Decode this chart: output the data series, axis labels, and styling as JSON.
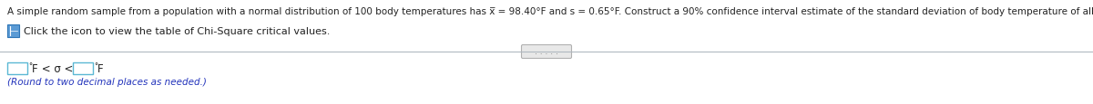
{
  "bg_color": "#ffffff",
  "line1": "A simple random sample from a population with a normal distribution of 100 body temperatures has x̅ = 98.40°F and s = 0.65°F. Construct a 90% confidence interval estimate of the standard deviation of body temperature of all healthy humans.",
  "line1_fontsize": 7.5,
  "line1_color": "#222222",
  "click_text": "Click the icon to view the table of Chi-Square critical values.",
  "click_fontsize": 8.0,
  "click_color": "#222222",
  "icon_color": "#5b9bd5",
  "icon_edge_color": "#2e75b6",
  "divider_color": "#b0b8c0",
  "dots_text": ". . . . .",
  "dots_fontsize": 6.5,
  "dots_color": "#777777",
  "dots_box_color": "#e8e8e8",
  "dots_box_edge": "#b0b0b0",
  "box_edge_color": "#5bb8d4",
  "sigma_fontsize": 8.5,
  "sigma_color": "#222222",
  "round_text": "(Round to two decimal places as needed.)",
  "round_fontsize": 7.5,
  "round_color": "#2233bb",
  "deg_fontsize": 6.0
}
